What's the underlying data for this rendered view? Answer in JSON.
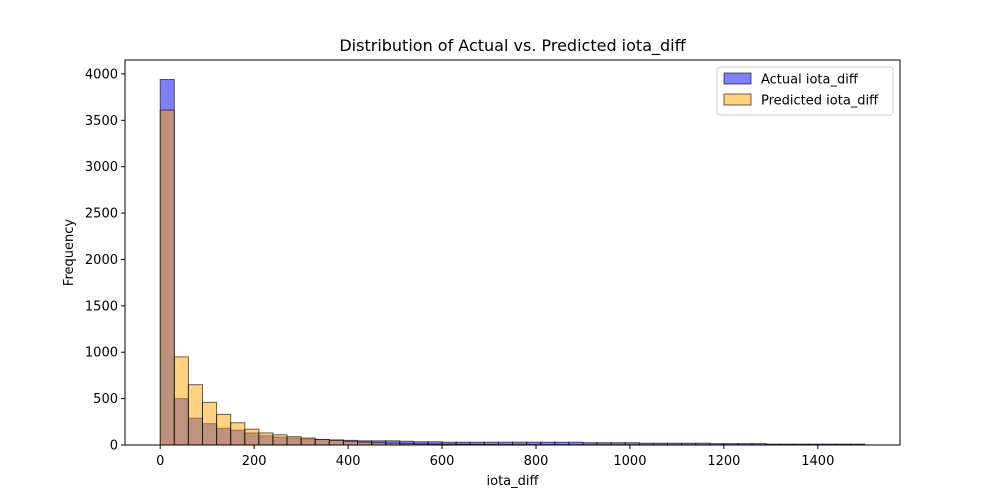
{
  "chart_data": {
    "type": "histogram",
    "title": "Distribution of Actual vs. Predicted iota_diff",
    "xlabel": "iota_diff",
    "ylabel": "Frequency",
    "xlim": [
      -75,
      1575
    ],
    "ylim": [
      0,
      4150
    ],
    "xticks": [
      0,
      200,
      400,
      600,
      800,
      1000,
      1200,
      1400
    ],
    "yticks": [
      0,
      500,
      1000,
      1500,
      2000,
      2500,
      3000,
      3500,
      4000
    ],
    "bin_width": 30,
    "bins_start": 0,
    "legend_position": "top-right",
    "series": [
      {
        "name": "Actual iota_diff",
        "color": "#0000ff",
        "alpha": 0.5,
        "counts": [
          3940,
          500,
          290,
          230,
          180,
          160,
          130,
          100,
          85,
          75,
          65,
          60,
          55,
          50,
          45,
          45,
          45,
          40,
          35,
          35,
          30,
          30,
          30,
          30,
          30,
          30,
          30,
          30,
          30,
          30,
          25,
          25,
          25,
          25,
          20,
          20,
          20,
          20,
          20,
          15,
          15,
          15,
          15,
          10,
          10,
          10,
          10,
          10,
          10,
          10
        ]
      },
      {
        "name": "Predicted iota_diff",
        "color": "#ffa500",
        "alpha": 0.5,
        "counts": [
          3610,
          950,
          650,
          460,
          330,
          240,
          170,
          130,
          110,
          90,
          75,
          60,
          50,
          40,
          30,
          25,
          20,
          15,
          12,
          10,
          8,
          7,
          6,
          5,
          5,
          4,
          4,
          3,
          3,
          3,
          2,
          2,
          2,
          2,
          2,
          1,
          1,
          1,
          1,
          1,
          1,
          1,
          1,
          1,
          1,
          1,
          1,
          1,
          1,
          1
        ]
      }
    ]
  }
}
